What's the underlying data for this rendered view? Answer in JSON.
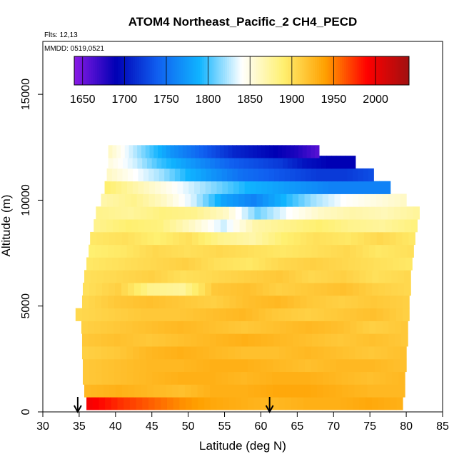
{
  "chart_data": {
    "type": "heatmap",
    "title": "ATOM4 Northeast_Pacific_2 CH4_PECD",
    "annotations": {
      "flights": "Flts: 12,13",
      "dates": "MMDD: 0519,0521"
    },
    "xlabel": "Latitude (deg N)",
    "ylabel": "Altitude (m)",
    "xlim": [
      30,
      85
    ],
    "ylim": [
      0,
      17500
    ],
    "x_ticks": [
      30,
      35,
      40,
      45,
      50,
      55,
      60,
      65,
      70,
      75,
      80,
      85
    ],
    "x_tick_labels": [
      "30",
      "35",
      "40",
      "45",
      "50",
      "55",
      "60",
      "65",
      "70",
      "75",
      "80",
      "85"
    ],
    "y_ticks": [
      0,
      5000,
      10000,
      15000
    ],
    "y_tick_labels": [
      "0",
      "5000",
      "10000",
      "15000"
    ],
    "colorbar": {
      "range": [
        1640,
        2040
      ],
      "ticks": [
        1650,
        1700,
        1750,
        1800,
        1850,
        1900,
        1950,
        2000
      ],
      "tick_labels": [
        "1650",
        "1700",
        "1750",
        "1800",
        "1850",
        "1900",
        "1950",
        "2000"
      ],
      "colors": [
        "#8a1ae6",
        "#0000b4",
        "#1060f0",
        "#10b4ff",
        "#ffffff",
        "#fff070",
        "#ffa000",
        "#ff0000",
        "#a01010"
      ]
    },
    "profile_markers_lat": [
      34.8,
      61.2
    ],
    "bands": [
      {
        "alt": 400,
        "lat_min": 36.0,
        "lat_max": 79.5,
        "ch4": [
          1995,
          1975,
          1960,
          1945,
          1935,
          1930,
          1925,
          1930,
          1930,
          1935,
          1930
        ]
      },
      {
        "alt": 1000,
        "lat_min": 35.7,
        "lat_max": 79.8,
        "ch4": [
          1925,
          1930,
          1925,
          1920,
          1930,
          1930,
          1935,
          1935,
          1930,
          1925,
          1925
        ]
      },
      {
        "alt": 1600,
        "lat_min": 35.5,
        "lat_max": 79.8,
        "ch4": [
          1915,
          1920,
          1925,
          1930,
          1930,
          1925,
          1930,
          1930,
          1925,
          1920,
          1925
        ]
      },
      {
        "alt": 2200,
        "lat_min": 35.5,
        "lat_max": 80.0,
        "ch4": [
          1915,
          1920,
          1925,
          1925,
          1930,
          1930,
          1925,
          1920,
          1925,
          1925,
          1920
        ]
      },
      {
        "alt": 2800,
        "lat_min": 35.4,
        "lat_max": 80.0,
        "ch4": [
          1910,
          1915,
          1925,
          1930,
          1925,
          1920,
          1920,
          1925,
          1920,
          1915,
          1920
        ]
      },
      {
        "alt": 3400,
        "lat_min": 35.4,
        "lat_max": 80.2,
        "ch4": [
          1915,
          1920,
          1915,
          1920,
          1925,
          1930,
          1925,
          1920,
          1915,
          1920,
          1915
        ]
      },
      {
        "alt": 4000,
        "lat_min": 35.3,
        "lat_max": 80.2,
        "ch4": [
          1910,
          1915,
          1920,
          1925,
          1920,
          1915,
          1920,
          1925,
          1920,
          1910,
          1915
        ]
      },
      {
        "alt": 4600,
        "lat_min": 34.5,
        "lat_max": 80.4,
        "ch4": [
          1905,
          1910,
          1915,
          1915,
          1920,
          1925,
          1915,
          1910,
          1915,
          1920,
          1910
        ]
      },
      {
        "alt": 5200,
        "lat_min": 35.4,
        "lat_max": 80.4,
        "ch4": [
          1905,
          1915,
          1920,
          1915,
          1910,
          1920,
          1925,
          1915,
          1910,
          1915,
          1910
        ]
      },
      {
        "alt": 5800,
        "lat_min": 35.5,
        "lat_max": 80.6,
        "ch4": [
          1900,
          1910,
          1880,
          1875,
          1915,
          1920,
          1910,
          1915,
          1920,
          1910,
          1905
        ]
      },
      {
        "alt": 6400,
        "lat_min": 35.7,
        "lat_max": 80.6,
        "ch4": [
          1900,
          1905,
          1910,
          1900,
          1905,
          1910,
          1915,
          1905,
          1910,
          1900,
          1905
        ]
      },
      {
        "alt": 7000,
        "lat_min": 36.0,
        "lat_max": 80.8,
        "ch4": [
          1895,
          1900,
          1905,
          1910,
          1900,
          1895,
          1905,
          1910,
          1905,
          1900,
          1895
        ]
      },
      {
        "alt": 7600,
        "lat_min": 36.3,
        "lat_max": 81.0,
        "ch4": [
          1890,
          1895,
          1905,
          1900,
          1905,
          1900,
          1895,
          1900,
          1905,
          1895,
          1900
        ]
      },
      {
        "alt": 8200,
        "lat_min": 36.5,
        "lat_max": 81.2,
        "ch4": [
          1895,
          1900,
          1890,
          1900,
          1880,
          1870,
          1890,
          1900,
          1895,
          1905,
          1895
        ]
      },
      {
        "alt": 8800,
        "lat_min": 37.0,
        "lat_max": 81.5,
        "ch4": [
          1880,
          1890,
          1885,
          1860,
          1830,
          1870,
          1880,
          1890,
          1880,
          1875,
          1885
        ]
      },
      {
        "alt": 9400,
        "lat_min": 37.3,
        "lat_max": 81.8,
        "ch4": [
          1880,
          1875,
          1885,
          1880,
          1860,
          1810,
          1840,
          1860,
          1870,
          1865,
          1875
        ]
      },
      {
        "alt": 10000,
        "lat_min": 38.0,
        "lat_max": 80.0,
        "ch4": [
          1870,
          1880,
          1860,
          1830,
          1780,
          1760,
          1790,
          1820,
          1840,
          1850,
          1860
        ]
      },
      {
        "alt": 10600,
        "lat_min": 38.5,
        "lat_max": 77.8,
        "ch4": [
          1890,
          1870,
          1850,
          1830,
          1810,
          1790,
          1780,
          1770,
          1760,
          1760,
          1760
        ]
      },
      {
        "alt": 11200,
        "lat_min": 38.8,
        "lat_max": 75.5,
        "ch4": [
          1860,
          1840,
          1820,
          1790,
          1770,
          1750,
          1740,
          1730,
          1720,
          1720,
          1730
        ]
      },
      {
        "alt": 11800,
        "lat_min": 39.0,
        "lat_max": 73.0,
        "ch4": [
          1850,
          1830,
          1800,
          1780,
          1760,
          1740,
          1730,
          1720,
          1700,
          1690,
          1690
        ]
      },
      {
        "alt": 12300,
        "lat_min": 39.0,
        "lat_max": 68.0,
        "ch4": [
          1860,
          1830,
          1800,
          1770,
          1750,
          1730,
          1710,
          1700,
          1690,
          1680,
          1660
        ]
      }
    ]
  }
}
